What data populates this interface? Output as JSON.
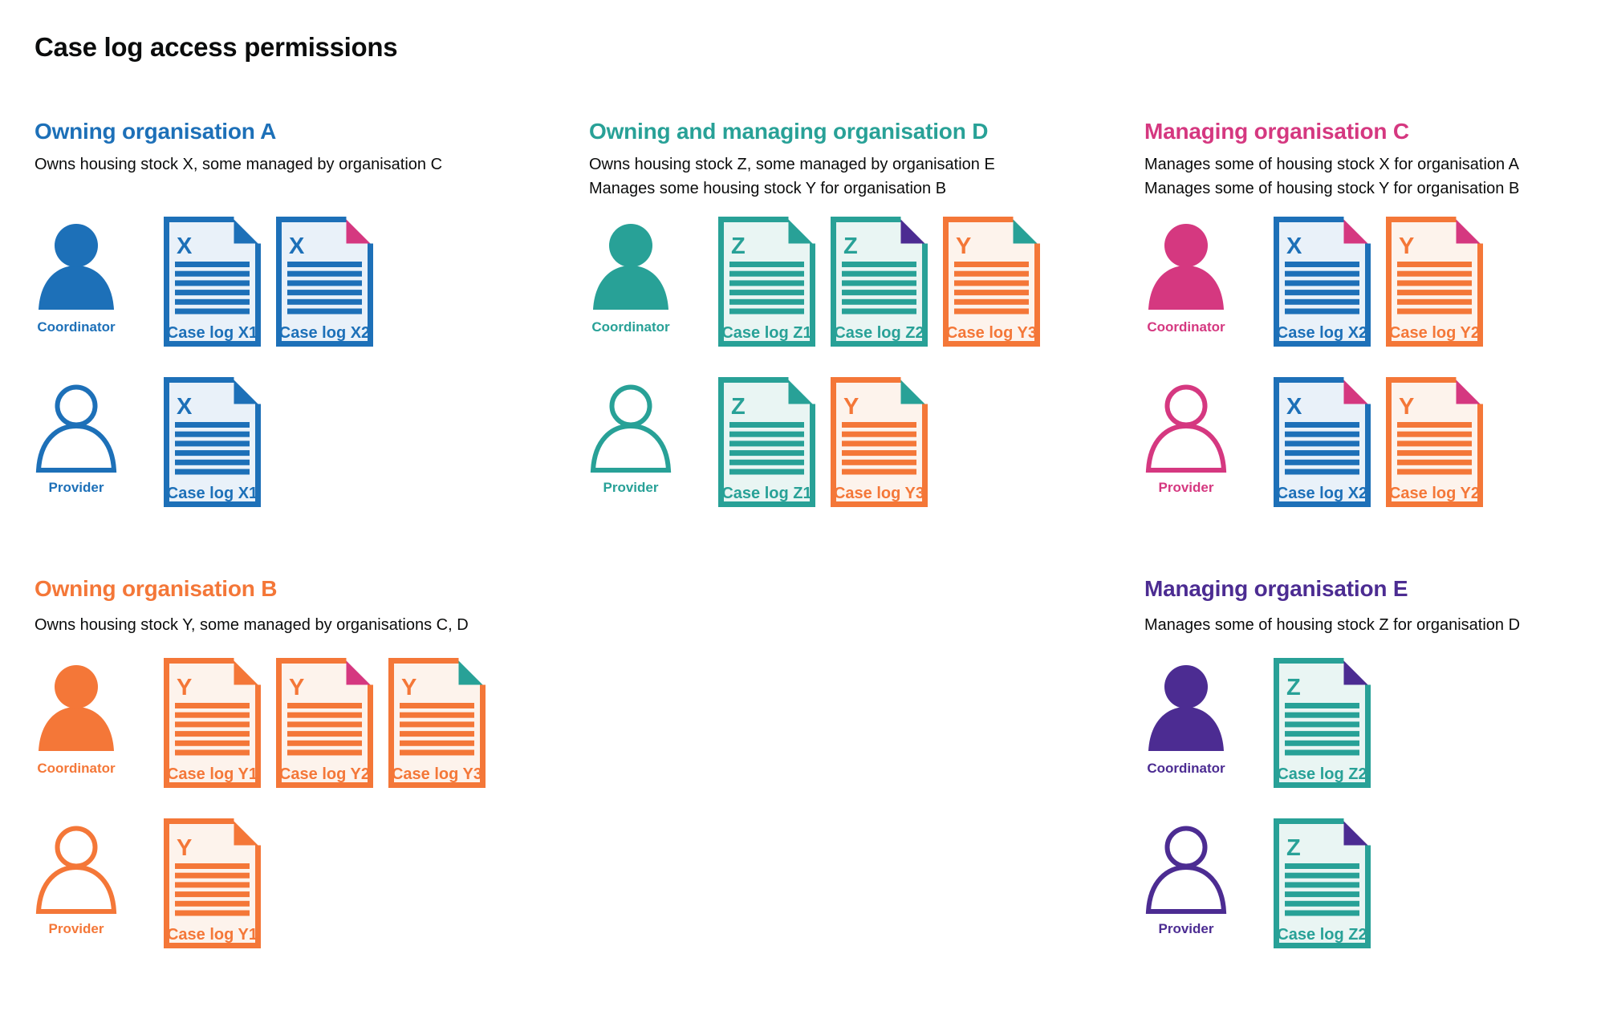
{
  "title": "Case log access permissions",
  "colors": {
    "ink": "#0b0c0c",
    "blue": "#1d70b8",
    "teal": "#28a197",
    "pink": "#d53880",
    "orange": "#f47738",
    "purple": "#4c2c92",
    "blue_tint": "#e9f1f9",
    "teal_tint": "#e9f5f3",
    "orange_tint": "#fdf3ec"
  },
  "sections": [
    {
      "id": "owning-organisation-a",
      "heading": "Owning organisation A",
      "color": "blue",
      "description": [
        "Owns housing stock X, some managed by organisation C"
      ],
      "column": 1,
      "band": 1,
      "rows": [
        {
          "role": "Coordinator",
          "person": "filled",
          "docs": [
            {
              "letter": "X",
              "label": "Case log X1",
              "stock": "blue",
              "fold": "blue"
            },
            {
              "letter": "X",
              "label": "Case log X2",
              "stock": "blue",
              "fold": "pink"
            }
          ]
        },
        {
          "role": "Provider",
          "person": "outline",
          "docs": [
            {
              "letter": "X",
              "label": "Case log X1",
              "stock": "blue",
              "fold": "blue"
            }
          ]
        }
      ]
    },
    {
      "id": "owning-and-managing-organisation-d",
      "heading": "Owning and managing organisation D",
      "color": "teal",
      "description": [
        "Owns housing stock Z, some managed by organisation E",
        "Manages some housing stock Y for organisation B"
      ],
      "column": 2,
      "band": 1,
      "rows": [
        {
          "role": "Coordinator",
          "person": "filled",
          "docs": [
            {
              "letter": "Z",
              "label": "Case log Z1",
              "stock": "teal",
              "fold": "teal"
            },
            {
              "letter": "Z",
              "label": "Case log Z2",
              "stock": "teal",
              "fold": "purple"
            },
            {
              "letter": "Y",
              "label": "Case log Y3",
              "stock": "orange",
              "fold": "teal"
            }
          ]
        },
        {
          "role": "Provider",
          "person": "outline",
          "docs": [
            {
              "letter": "Z",
              "label": "Case log Z1",
              "stock": "teal",
              "fold": "teal"
            },
            {
              "letter": "Y",
              "label": "Case log Y3",
              "stock": "orange",
              "fold": "teal"
            }
          ]
        }
      ]
    },
    {
      "id": "managing-organisation-c",
      "heading": "Managing organisation C",
      "color": "pink",
      "description": [
        "Manages some of housing stock X for organisation A",
        "Manages some of housing stock Y for organisation B"
      ],
      "column": 3,
      "band": 1,
      "rows": [
        {
          "role": "Coordinator",
          "person": "filled",
          "docs": [
            {
              "letter": "X",
              "label": "Case log X2",
              "stock": "blue",
              "fold": "pink"
            },
            {
              "letter": "Y",
              "label": "Case log Y2",
              "stock": "orange",
              "fold": "pink"
            }
          ]
        },
        {
          "role": "Provider",
          "person": "outline",
          "docs": [
            {
              "letter": "X",
              "label": "Case log X2",
              "stock": "blue",
              "fold": "pink"
            },
            {
              "letter": "Y",
              "label": "Case log Y2",
              "stock": "orange",
              "fold": "pink"
            }
          ]
        }
      ]
    },
    {
      "id": "owning-organisation-b",
      "heading": "Owning organisation B",
      "color": "orange",
      "description": [
        "Owns housing stock Y, some managed by organisations C, D"
      ],
      "column": 1,
      "band": 2,
      "rows": [
        {
          "role": "Coordinator",
          "person": "filled",
          "docs": [
            {
              "letter": "Y",
              "label": "Case log Y1",
              "stock": "orange",
              "fold": "orange"
            },
            {
              "letter": "Y",
              "label": "Case log Y2",
              "stock": "orange",
              "fold": "pink"
            },
            {
              "letter": "Y",
              "label": "Case log Y3",
              "stock": "orange",
              "fold": "teal"
            }
          ]
        },
        {
          "role": "Provider",
          "person": "outline",
          "docs": [
            {
              "letter": "Y",
              "label": "Case log Y1",
              "stock": "orange",
              "fold": "orange"
            }
          ]
        }
      ]
    },
    {
      "id": "managing-organisation-e",
      "heading": "Managing organisation E",
      "color": "purple",
      "description": [
        "Manages some of housing stock Z for organisation D"
      ],
      "column": 3,
      "band": 2,
      "rows": [
        {
          "role": "Coordinator",
          "person": "filled",
          "docs": [
            {
              "letter": "Z",
              "label": "Case log Z2",
              "stock": "teal",
              "fold": "purple"
            }
          ]
        },
        {
          "role": "Provider",
          "person": "outline",
          "docs": [
            {
              "letter": "Z",
              "label": "Case log Z2",
              "stock": "teal",
              "fold": "purple"
            }
          ]
        }
      ]
    }
  ]
}
